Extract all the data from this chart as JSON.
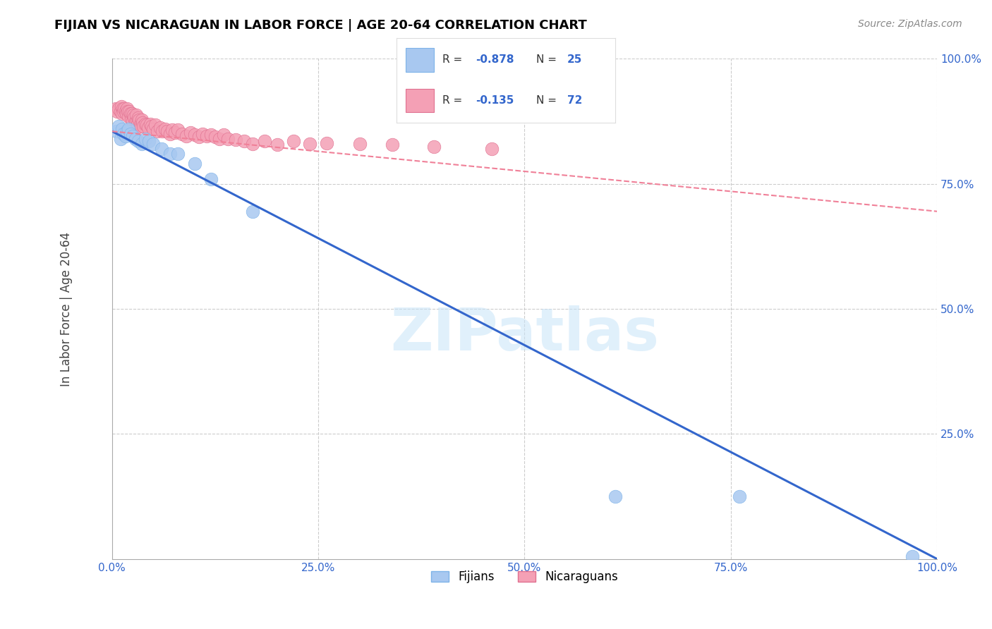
{
  "title": "FIJIAN VS NICARAGUAN IN LABOR FORCE | AGE 20-64 CORRELATION CHART",
  "source": "Source: ZipAtlas.com",
  "xlabel": "",
  "ylabel": "In Labor Force | Age 20-64",
  "watermark": "ZIPatlas",
  "fijian_color": "#A8C8F0",
  "nicaraguan_color": "#F4A0B5",
  "fijian_edge": "#7EB3E8",
  "nicaraguan_edge": "#E07090",
  "regression_fijian_color": "#3366CC",
  "regression_nicaraguan_color": "#F08098",
  "R_fijian": -0.878,
  "N_fijian": 25,
  "R_nicaraguan": -0.135,
  "N_nicaraguan": 72,
  "legend_label_fijian": "Fijians",
  "legend_label_nicaraguan": "Nicaraguans",
  "xlim": [
    0.0,
    1.0
  ],
  "ylim": [
    0.0,
    1.0
  ],
  "xticks": [
    0.0,
    0.25,
    0.5,
    0.75,
    1.0
  ],
  "yticks": [
    0.0,
    0.25,
    0.5,
    0.75,
    1.0
  ],
  "xticklabels": [
    "0.0%",
    "25.0%",
    "50.0%",
    "75.0%",
    "100.0%"
  ],
  "yticklabels": [
    "",
    "25.0%",
    "50.0%",
    "75.0%",
    "100.0%"
  ],
  "fijian_x": [
    0.005,
    0.008,
    0.01,
    0.012,
    0.014,
    0.016,
    0.018,
    0.02,
    0.022,
    0.025,
    0.028,
    0.032,
    0.036,
    0.04,
    0.045,
    0.05,
    0.06,
    0.07,
    0.08,
    0.1,
    0.12,
    0.17,
    0.61,
    0.76,
    0.97
  ],
  "fijian_y": [
    0.855,
    0.865,
    0.84,
    0.86,
    0.85,
    0.845,
    0.855,
    0.86,
    0.85,
    0.845,
    0.84,
    0.835,
    0.83,
    0.84,
    0.835,
    0.83,
    0.82,
    0.81,
    0.81,
    0.79,
    0.76,
    0.695,
    0.125,
    0.125,
    0.005
  ],
  "nicaraguan_x": [
    0.004,
    0.006,
    0.008,
    0.01,
    0.011,
    0.012,
    0.013,
    0.014,
    0.015,
    0.016,
    0.017,
    0.018,
    0.019,
    0.02,
    0.021,
    0.022,
    0.023,
    0.024,
    0.025,
    0.026,
    0.027,
    0.028,
    0.029,
    0.03,
    0.031,
    0.032,
    0.033,
    0.034,
    0.035,
    0.036,
    0.037,
    0.038,
    0.04,
    0.042,
    0.044,
    0.046,
    0.048,
    0.05,
    0.052,
    0.055,
    0.058,
    0.061,
    0.064,
    0.067,
    0.07,
    0.073,
    0.076,
    0.08,
    0.085,
    0.09,
    0.095,
    0.1,
    0.105,
    0.11,
    0.115,
    0.12,
    0.125,
    0.13,
    0.135,
    0.14,
    0.15,
    0.16,
    0.17,
    0.185,
    0.2,
    0.22,
    0.24,
    0.26,
    0.3,
    0.34,
    0.39,
    0.46
  ],
  "nicaraguan_y": [
    0.9,
    0.895,
    0.9,
    0.895,
    0.905,
    0.89,
    0.9,
    0.895,
    0.9,
    0.895,
    0.89,
    0.9,
    0.895,
    0.885,
    0.895,
    0.89,
    0.88,
    0.89,
    0.875,
    0.888,
    0.882,
    0.875,
    0.888,
    0.875,
    0.87,
    0.882,
    0.878,
    0.87,
    0.865,
    0.878,
    0.872,
    0.865,
    0.87,
    0.868,
    0.862,
    0.87,
    0.865,
    0.86,
    0.868,
    0.855,
    0.862,
    0.855,
    0.86,
    0.855,
    0.85,
    0.858,
    0.852,
    0.858,
    0.85,
    0.845,
    0.852,
    0.848,
    0.844,
    0.85,
    0.845,
    0.848,
    0.844,
    0.84,
    0.848,
    0.84,
    0.838,
    0.835,
    0.83,
    0.835,
    0.828,
    0.835,
    0.83,
    0.832,
    0.83,
    0.828,
    0.825,
    0.82
  ],
  "background_color": "#FFFFFF",
  "grid_color": "#CCCCCC",
  "tick_color": "#3366CC",
  "title_color": "#000000",
  "source_color": "#888888"
}
